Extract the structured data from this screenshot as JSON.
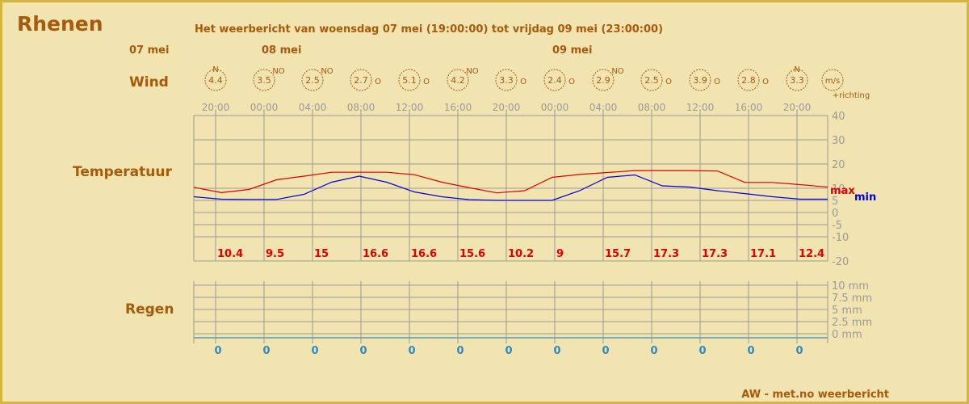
{
  "location": "Rhenen",
  "headline": "Het weerbericht van woensdag 07 mei (19:00:00) tot vrijdag 09 mei (23:00:00)",
  "days": [
    "07 mei",
    "08 mei",
    "09 mei"
  ],
  "row_labels": {
    "wind": "Wind",
    "temperature": "Temperatuur",
    "rain": "Regen"
  },
  "wind_unit": "m/s",
  "wind_direction_note": "+richting",
  "footer": "AW - met.no weerbericht",
  "times": [
    "20:00",
    "00:00",
    "04:00",
    "08:00",
    "12:00",
    "16:00",
    "20:00",
    "00:00",
    "04:00",
    "08:00",
    "12:00",
    "16:00",
    "20:00"
  ],
  "colors": {
    "max": "#e00000",
    "min": "#0000dd",
    "label": "#a75a0a",
    "grid": "#9a9a9a",
    "rain": "#2e8bc0"
  },
  "chart_data": {
    "type": "line",
    "x": [
      "20:00",
      "00:00",
      "04:00",
      "08:00",
      "12:00",
      "16:00",
      "20:00",
      "00:00",
      "04:00",
      "08:00",
      "12:00",
      "16:00",
      "20:00"
    ],
    "wind": [
      {
        "speed": "4.4",
        "direction": "N"
      },
      {
        "speed": "3.5",
        "direction": "NO"
      },
      {
        "speed": "2.5",
        "direction": "NO"
      },
      {
        "speed": "2.7",
        "direction": "O"
      },
      {
        "speed": "5.1",
        "direction": "O"
      },
      {
        "speed": "4.2",
        "direction": "NO"
      },
      {
        "speed": "3.3",
        "direction": "O"
      },
      {
        "speed": "2.4",
        "direction": "O"
      },
      {
        "speed": "2.9",
        "direction": "NO"
      },
      {
        "speed": "2.5",
        "direction": "O"
      },
      {
        "speed": "3.9",
        "direction": "O"
      },
      {
        "speed": "2.8",
        "direction": "O"
      },
      {
        "speed": "3.3",
        "direction": "N"
      }
    ],
    "temperature": {
      "yticks": [
        40,
        30,
        20,
        10,
        5,
        0,
        -5,
        -10,
        -20
      ],
      "series": [
        {
          "name": "max",
          "values": [
            10.4,
            8.2,
            9.5,
            13.5,
            15,
            16.6,
            16.6,
            16.6,
            15.6,
            12.5,
            10.2,
            8.1,
            9,
            14.5,
            15.7,
            16.5,
            17.3,
            17.3,
            17.3,
            17.1,
            12.4,
            12.4,
            11.5,
            10.5
          ]
        },
        {
          "name": "min",
          "values": [
            6.5,
            5.5,
            5.4,
            5.4,
            7.5,
            12.5,
            15,
            12.5,
            8.5,
            6.5,
            5.3,
            5,
            5,
            5,
            9,
            14.5,
            15.5,
            11,
            10.5,
            9,
            7.8,
            6.5,
            5.5,
            5.5
          ]
        }
      ],
      "daily_max_labels": [
        "10.4",
        "9.5",
        "15",
        "16.6",
        "16.6",
        "15.6",
        "10.2",
        "9",
        "15.7",
        "17.3",
        "17.3",
        "17.1",
        "12.4"
      ]
    },
    "rain": {
      "yticks": [
        "10 mm",
        "7.5 mm",
        "5 mm",
        "2.5 mm",
        "0 mm"
      ],
      "values": [
        "0",
        "0",
        "0",
        "0",
        "0",
        "0",
        "0",
        "0",
        "0",
        "0",
        "0",
        "0",
        "0"
      ]
    }
  }
}
